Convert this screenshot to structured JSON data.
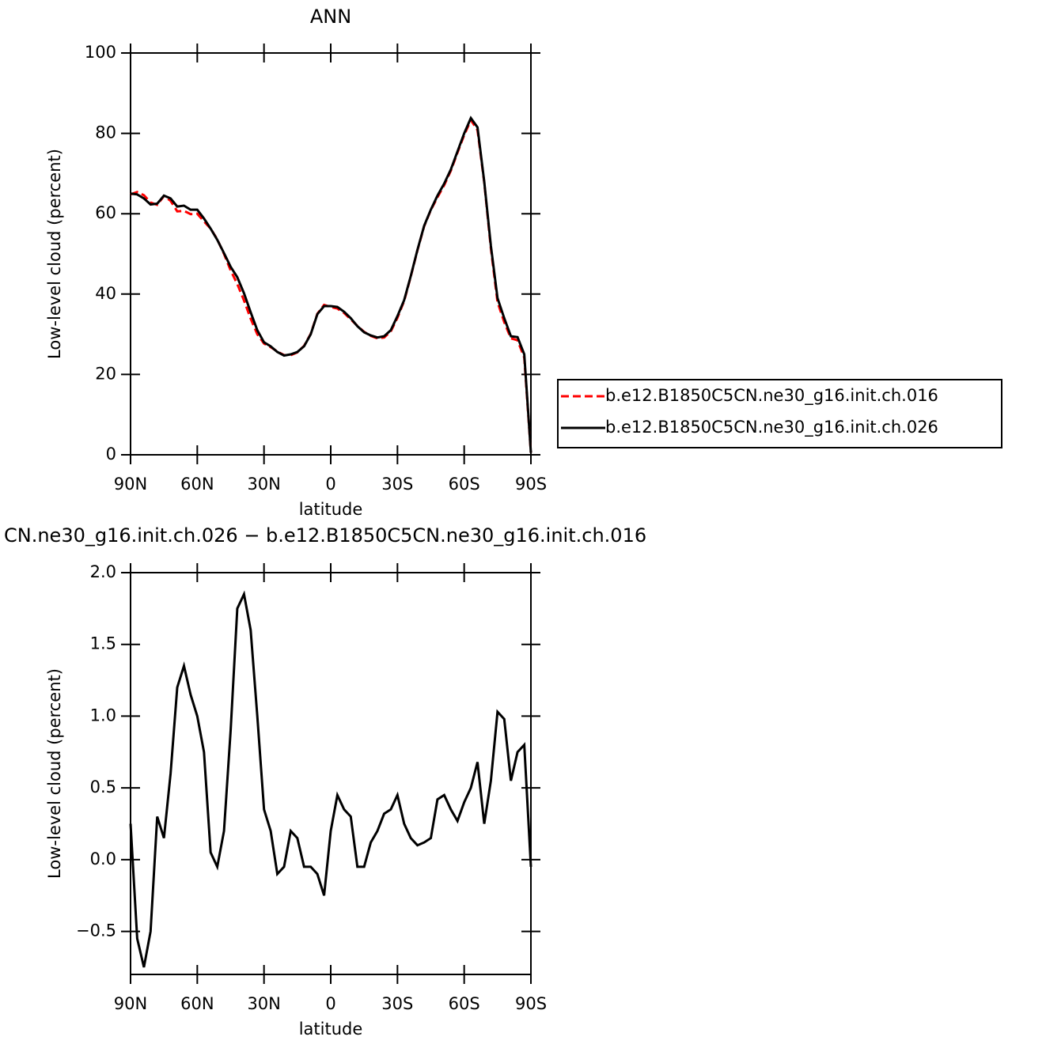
{
  "chart_data": [
    {
      "type": "line",
      "title": "ANN",
      "xlabel": "latitude",
      "ylabel": "Low-level cloud (percent)",
      "xlim": [
        90,
        -90
      ],
      "xticks": [
        {
          "value": 90,
          "label": "90N"
        },
        {
          "value": 60,
          "label": "60N"
        },
        {
          "value": 30,
          "label": "30N"
        },
        0,
        {
          "value": -30,
          "label": "30S"
        },
        {
          "value": -60,
          "label": "60S"
        },
        {
          "value": -90,
          "label": "90S"
        }
      ],
      "ylim": [
        0,
        100
      ],
      "yticks": [
        0,
        20,
        40,
        60,
        80,
        100
      ],
      "legend": "right",
      "x": [
        90,
        87,
        84,
        81,
        78,
        75,
        72,
        69,
        66,
        63,
        60,
        57,
        54,
        51,
        48,
        45,
        42,
        39,
        36,
        33,
        30,
        27,
        24,
        21,
        18,
        15,
        12,
        9,
        6,
        3,
        0,
        -3,
        -6,
        -9,
        -12,
        -15,
        -18,
        -21,
        -24,
        -27,
        -30,
        -33,
        -36,
        -39,
        -42,
        -45,
        -48,
        -51,
        -54,
        -57,
        -60,
        -63,
        -66,
        -69,
        -72,
        -75,
        -78,
        -81,
        -84,
        -87,
        -90
      ],
      "series": [
        {
          "name": "b.e12.B1850C5CN.ne30_g16.init.ch.016",
          "color": "#ff0000",
          "linestyle": "dashed",
          "values": [
            64.8,
            65.4,
            64.6,
            62.8,
            62.2,
            64.4,
            63.2,
            60.6,
            60.7,
            59.9,
            60.0,
            58.1,
            56.3,
            53.6,
            50.0,
            45.9,
            42.5,
            38.4,
            33.9,
            30.0,
            27.7,
            26.8,
            25.7,
            24.8,
            24.8,
            25.5,
            27.1,
            30.1,
            35.1,
            37.3,
            36.8,
            36.4,
            35.3,
            33.7,
            32.1,
            30.6,
            29.6,
            29.0,
            29.2,
            30.7,
            34.1,
            38.3,
            44.4,
            50.9,
            56.9,
            60.9,
            64.1,
            67.1,
            70.7,
            75.2,
            79.6,
            83.3,
            80.8,
            67.8,
            51.4,
            38.0,
            33.0,
            29.0,
            28.5,
            24.2,
            0.5
          ]
        },
        {
          "name": "b.e12.B1850C5CN.ne30_g16.init.ch.026",
          "color": "#000000",
          "linestyle": "solid",
          "values": [
            65.0,
            64.8,
            63.8,
            62.3,
            62.5,
            64.5,
            63.8,
            61.8,
            62.0,
            61.0,
            61.0,
            58.8,
            56.3,
            53.5,
            50.2,
            46.8,
            44.2,
            40.2,
            35.5,
            31.0,
            28.0,
            27.0,
            25.6,
            24.7,
            25.0,
            25.6,
            27.0,
            30.0,
            35.0,
            37.0,
            37.0,
            36.8,
            35.6,
            34.0,
            32.0,
            30.5,
            29.7,
            29.2,
            29.5,
            31.0,
            34.5,
            38.5,
            44.5,
            51.0,
            57.0,
            61.0,
            64.5,
            67.5,
            71.0,
            75.5,
            80.0,
            83.8,
            81.5,
            68.0,
            52.0,
            39.0,
            34.0,
            29.5,
            29.3,
            25.0,
            0.5
          ]
        }
      ]
    },
    {
      "type": "line",
      "title": "CN.ne30_g16.init.ch.026 − b.e12.B1850C5CN.ne30_g16.init.ch.016",
      "xlabel": "latitude",
      "ylabel": "Low-level cloud (percent)",
      "xlim": [
        90,
        -90
      ],
      "xticks": [
        {
          "value": 90,
          "label": "90N"
        },
        {
          "value": 60,
          "label": "60N"
        },
        {
          "value": 30,
          "label": "30N"
        },
        0,
        {
          "value": -30,
          "label": "30S"
        },
        {
          "value": -60,
          "label": "60S"
        },
        {
          "value": -90,
          "label": "90S"
        }
      ],
      "ylim": [
        -0.8,
        2.0
      ],
      "yticks": [
        {
          "value": -0.5,
          "label": "−0.5"
        },
        {
          "value": 0,
          "label": "0.0"
        },
        0.5,
        {
          "value": 1,
          "label": "1.0"
        },
        1.5,
        {
          "value": 2,
          "label": "2.0"
        }
      ],
      "x": [
        90,
        87,
        84,
        81,
        78,
        75,
        72,
        69,
        66,
        63,
        60,
        57,
        54,
        51,
        48,
        45,
        42,
        39,
        36,
        33,
        30,
        27,
        24,
        21,
        18,
        15,
        12,
        9,
        6,
        3,
        0,
        -3,
        -6,
        -9,
        -12,
        -15,
        -18,
        -21,
        -24,
        -27,
        -30,
        -33,
        -36,
        -39,
        -42,
        -45,
        -48,
        -51,
        -54,
        -57,
        -60,
        -63,
        -66,
        -69,
        -72,
        -75,
        -78,
        -81,
        -84,
        -87,
        -90
      ],
      "series": [
        {
          "color": "#000000",
          "linestyle": "solid",
          "values": [
            0.25,
            -0.55,
            -0.75,
            -0.5,
            0.3,
            0.15,
            0.6,
            1.2,
            1.35,
            1.15,
            1.0,
            0.75,
            0.05,
            -0.05,
            0.2,
            0.9,
            1.75,
            1.85,
            1.6,
            1.0,
            0.35,
            0.2,
            -0.1,
            -0.05,
            0.2,
            0.15,
            -0.05,
            -0.05,
            -0.1,
            -0.25,
            0.2,
            0.45,
            0.35,
            0.3,
            -0.05,
            -0.05,
            0.12,
            0.2,
            0.32,
            0.35,
            0.45,
            0.25,
            0.15,
            0.1,
            0.12,
            0.15,
            0.42,
            0.45,
            0.35,
            0.27,
            0.4,
            0.5,
            0.68,
            0.25,
            0.55,
            1.03,
            0.98,
            0.55,
            0.75,
            0.8,
            -0.05
          ]
        }
      ]
    }
  ]
}
